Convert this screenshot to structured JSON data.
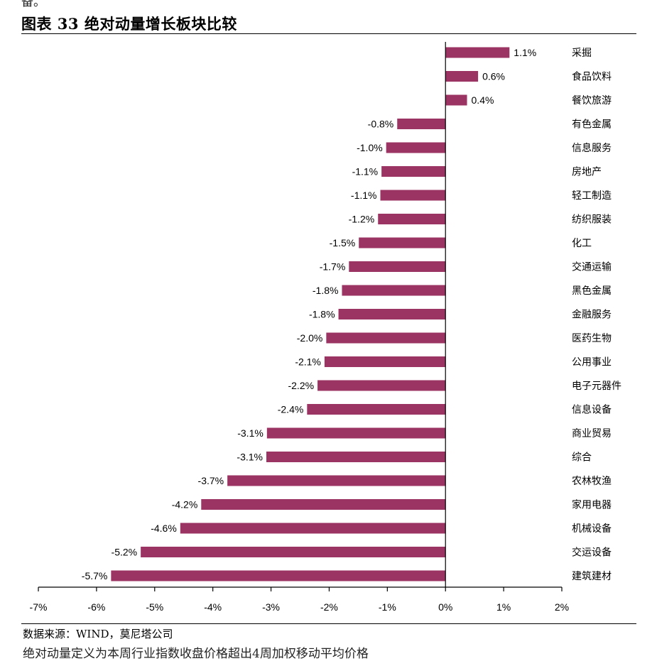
{
  "top_fragment": "备。",
  "bottom_fragment": "绝对动量定义为本周行业指数收盘价格超出4周加权移动平均价格",
  "source": "数据来源：WIND，莫尼塔公司",
  "chart_data": {
    "type": "bar",
    "orientation": "horizontal",
    "title": "图表 33 绝对动量增长板块比较",
    "bar_color": "#9b3363",
    "xlim": [
      -7,
      2
    ],
    "unit": "%",
    "x_ticks": [
      "-7%",
      "-6%",
      "-5%",
      "-4%",
      "-3%",
      "-2%",
      "-1%",
      "0%",
      "1%",
      "2%"
    ],
    "categories": [
      "采掘",
      "食品饮料",
      "餐饮旅游",
      "有色金属",
      "信息服务",
      "房地产",
      "轻工制造",
      "纺织服装",
      "化工",
      "交通运输",
      "黑色金属",
      "金融服务",
      "医药生物",
      "公用事业",
      "电子元器件",
      "信息设备",
      "商业贸易",
      "综合",
      "农林牧渔",
      "家用电器",
      "机械设备",
      "交运设备",
      "建筑建材"
    ],
    "values": [
      1.1,
      0.56,
      0.37,
      -0.83,
      -1.02,
      -1.1,
      -1.12,
      -1.16,
      -1.49,
      -1.66,
      -1.78,
      -1.84,
      -2.05,
      -2.08,
      -2.2,
      -2.38,
      -3.07,
      -3.08,
      -3.75,
      -4.2,
      -4.56,
      -5.24,
      -5.75
    ],
    "value_labels": [
      "1.1%",
      "0.6%",
      "0.4%",
      "-0.8%",
      "-1.0%",
      "-1.1%",
      "-1.1%",
      "-1.2%",
      "-1.5%",
      "-1.7%",
      "-1.8%",
      "-1.8%",
      "-2.0%",
      "-2.1%",
      "-2.2%",
      "-2.4%",
      "-3.1%",
      "-3.1%",
      "-3.7%",
      "-4.2%",
      "-4.6%",
      "-5.2%",
      "-5.7%"
    ]
  }
}
